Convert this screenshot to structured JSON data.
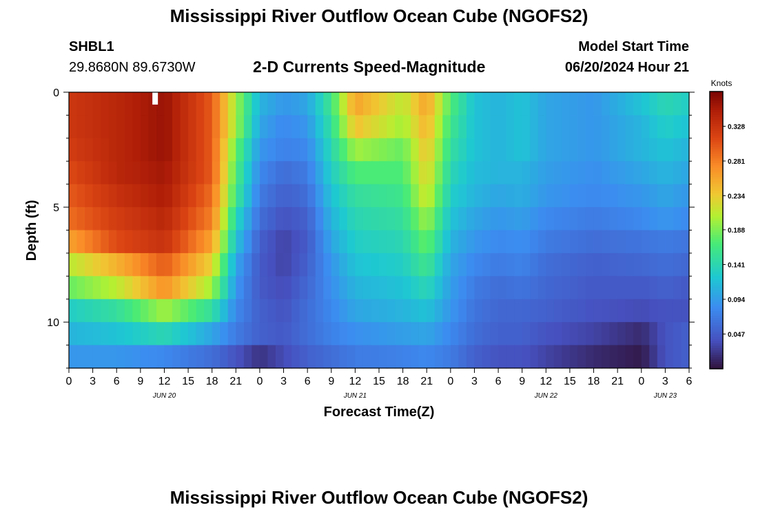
{
  "page": {
    "title": "Mississippi River Outflow Ocean Cube (NGOFS2)",
    "second_title": "Mississippi River Outflow Ocean Cube (NGOFS2)"
  },
  "station": {
    "id": "SHBL1",
    "coords": "29.8680N  89.6730W"
  },
  "model": {
    "label": "Model Start Time",
    "start": "06/20/2024 Hour 21"
  },
  "chart_data": {
    "type": "heatmap",
    "title": "2-D Currents Speed-Magnitude",
    "xlabel": "Forecast Time(Z)",
    "ylabel": "Depth (ft)",
    "ylim": [
      12,
      0
    ],
    "yticks": [
      "0",
      "5",
      "10"
    ],
    "xticks": [
      "0",
      "3",
      "6",
      "9",
      "12",
      "15",
      "18",
      "21",
      "0",
      "3",
      "6",
      "9",
      "12",
      "15",
      "18",
      "21",
      "0",
      "3",
      "6",
      "9",
      "12",
      "15",
      "18",
      "21",
      "0",
      "3",
      "6"
    ],
    "date_labels": [
      {
        "label": "JUN 20",
        "hour": 12
      },
      {
        "label": "JUN 21",
        "hour": 36
      },
      {
        "label": "JUN 22",
        "hour": 60
      },
      {
        "label": "JUN 23",
        "hour": 75
      }
    ],
    "x_hours": [
      0,
      78
    ],
    "colorbar": {
      "unit": "Knots",
      "ticks": [
        "0.328",
        "0.281",
        "0.234",
        "0.188",
        "0.141",
        "0.094",
        "0.047"
      ],
      "range": [
        0,
        0.375
      ]
    },
    "depth_layers": [
      0.5,
      1.5,
      2.5,
      3.5,
      4.5,
      5.5,
      6.5,
      7.5,
      8.5,
      9.5,
      10.5,
      11.5
    ],
    "time_hours": [
      0,
      6,
      12,
      18,
      21,
      24,
      27,
      30,
      33,
      36,
      42,
      45,
      48,
      51,
      54,
      57,
      60,
      66,
      72,
      75,
      78
    ],
    "speed_knots": [
      [
        0.325,
        0.34,
        0.36,
        0.3,
        0.2,
        0.11,
        0.09,
        0.1,
        0.16,
        0.26,
        0.21,
        0.26,
        0.17,
        0.12,
        0.11,
        0.12,
        0.1,
        0.09,
        0.12,
        0.14,
        0.13
      ],
      [
        0.325,
        0.34,
        0.36,
        0.3,
        0.2,
        0.1,
        0.08,
        0.09,
        0.15,
        0.24,
        0.2,
        0.25,
        0.16,
        0.12,
        0.11,
        0.12,
        0.1,
        0.09,
        0.11,
        0.13,
        0.12
      ],
      [
        0.32,
        0.34,
        0.36,
        0.3,
        0.18,
        0.09,
        0.075,
        0.08,
        0.14,
        0.2,
        0.18,
        0.24,
        0.15,
        0.12,
        0.11,
        0.12,
        0.1,
        0.09,
        0.11,
        0.12,
        0.11
      ],
      [
        0.31,
        0.34,
        0.355,
        0.3,
        0.17,
        0.08,
        0.06,
        0.07,
        0.13,
        0.17,
        0.17,
        0.23,
        0.14,
        0.115,
        0.11,
        0.11,
        0.095,
        0.085,
        0.1,
        0.11,
        0.1
      ],
      [
        0.3,
        0.33,
        0.35,
        0.29,
        0.16,
        0.07,
        0.05,
        0.06,
        0.12,
        0.15,
        0.16,
        0.22,
        0.13,
        0.11,
        0.1,
        0.105,
        0.09,
        0.08,
        0.09,
        0.1,
        0.09
      ],
      [
        0.29,
        0.32,
        0.34,
        0.28,
        0.14,
        0.06,
        0.04,
        0.05,
        0.11,
        0.14,
        0.15,
        0.2,
        0.12,
        0.1,
        0.09,
        0.095,
        0.08,
        0.07,
        0.08,
        0.09,
        0.08
      ],
      [
        0.26,
        0.31,
        0.33,
        0.26,
        0.12,
        0.05,
        0.03,
        0.045,
        0.1,
        0.13,
        0.14,
        0.18,
        0.11,
        0.09,
        0.08,
        0.085,
        0.07,
        0.06,
        0.065,
        0.07,
        0.065
      ],
      [
        0.21,
        0.25,
        0.3,
        0.23,
        0.1,
        0.045,
        0.03,
        0.05,
        0.09,
        0.12,
        0.13,
        0.16,
        0.1,
        0.08,
        0.07,
        0.075,
        0.06,
        0.05,
        0.055,
        0.06,
        0.055
      ],
      [
        0.18,
        0.21,
        0.27,
        0.2,
        0.09,
        0.045,
        0.035,
        0.055,
        0.085,
        0.11,
        0.12,
        0.14,
        0.095,
        0.07,
        0.06,
        0.065,
        0.055,
        0.045,
        0.045,
        0.05,
        0.045
      ],
      [
        0.13,
        0.15,
        0.2,
        0.15,
        0.08,
        0.05,
        0.04,
        0.06,
        0.08,
        0.1,
        0.11,
        0.12,
        0.09,
        0.065,
        0.055,
        0.055,
        0.05,
        0.04,
        0.035,
        0.04,
        0.04
      ],
      [
        0.11,
        0.12,
        0.14,
        0.1,
        0.07,
        0.05,
        0.045,
        0.06,
        0.075,
        0.085,
        0.095,
        0.1,
        0.08,
        0.06,
        0.05,
        0.05,
        0.04,
        0.03,
        0.015,
        0.04,
        0.05
      ],
      [
        0.09,
        0.09,
        0.08,
        0.06,
        0.04,
        0.02,
        0.035,
        0.05,
        0.06,
        0.07,
        0.075,
        0.08,
        0.07,
        0.05,
        0.04,
        0.04,
        0.03,
        0.015,
        0.005,
        0.04,
        0.05
      ]
    ]
  }
}
